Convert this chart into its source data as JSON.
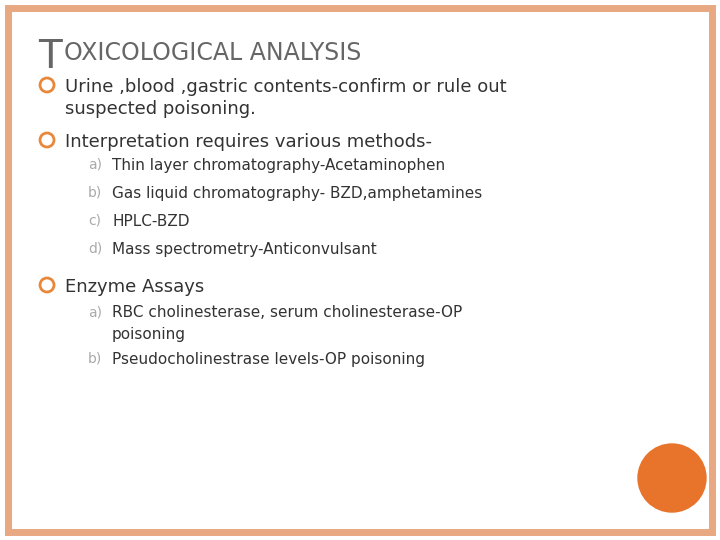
{
  "title_T": "T",
  "title_rest": "OXICOLOGICAL ANALYSIS",
  "background_color": "#ffffff",
  "border_color": "#e8a882",
  "bullet_color": "#e8883a",
  "title_color": "#666666",
  "text_color": "#333333",
  "sub_label_color": "#aaaaaa",
  "circle_color": "#e8732a",
  "bullet1_line1": "Urine ,blood ,gastric contents-confirm or rule out",
  "bullet1_line2": "suspected poisoning.",
  "bullet2_main": "Interpretation requires various methods-",
  "bullet2_subs_label": [
    "a)",
    "b)",
    "c)",
    "d)"
  ],
  "bullet2_subs_text": [
    "Thin layer chromatography-Acetaminophen",
    "Gas liquid chromatography- BZD,amphetamines",
    "HPLC-BZD",
    "Mass spectrometry-Anticonvulsant"
  ],
  "bullet3_main": "Enzyme Assays",
  "bullet3_subs_label": [
    "a)",
    "b)"
  ],
  "bullet3_subs_text": [
    "RBC cholinesterase, serum cholinesterase-OP\npoisoning",
    "Pseudocholinestrase levels-OP poisoning"
  ],
  "figsize": [
    7.2,
    5.4
  ],
  "dpi": 100
}
